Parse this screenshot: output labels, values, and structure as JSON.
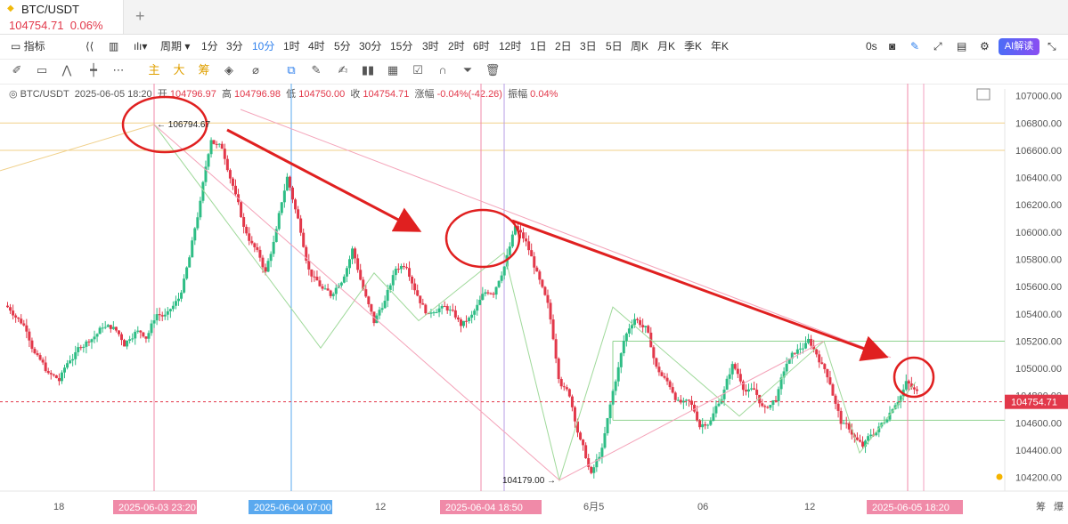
{
  "tab": {
    "symbol": "BTC/USDT",
    "price": "104754.71",
    "change": "0.06%"
  },
  "toolbar": {
    "indicators": "指标",
    "period": "周期",
    "intervals": [
      "1分",
      "3分",
      "10分",
      "1时",
      "4时",
      "5分",
      "30分",
      "15分",
      "3时",
      "2时",
      "6时",
      "12时",
      "1日",
      "2日",
      "3日",
      "5日",
      "周K",
      "月K",
      "季K",
      "年K"
    ],
    "active_interval": "10分",
    "timer": "0s",
    "ai": "AI解读"
  },
  "drawbar": {
    "labels": [
      "主",
      "大",
      "筹"
    ]
  },
  "info": {
    "symbol": "BTC/USDT",
    "datetime": "2025-06-05 18:20",
    "open_label": "开",
    "open": "104796.97",
    "high_label": "高",
    "high": "104796.98",
    "low_label": "低",
    "low": "104750.00",
    "close_label": "收",
    "close": "104754.71",
    "chg_label": "涨幅",
    "chg": "-0.04%(-42.26)",
    "amp_label": "振幅",
    "amp": "0.04%"
  },
  "chart_data": {
    "type": "candlestick",
    "ylim": [
      104100,
      107050
    ],
    "y_ticks": [
      104200,
      104400,
      104600,
      104800,
      105000,
      105200,
      105400,
      105600,
      105800,
      106000,
      106200,
      106400,
      106600,
      106800,
      107000
    ],
    "x_ticks": [
      "18",
      "12",
      "6月5",
      "06",
      "12",
      "筹",
      "爆"
    ],
    "markers": {
      "high": "106794.67",
      "low": "104179.00",
      "current": "104754.71"
    },
    "crosshair_labels": [
      "2025-06-03 23:20",
      "2025-06-04 07:00",
      "2025-06-04 18:50",
      "2025-06-05 18:20"
    ],
    "candles_series_close": [
      105420,
      105300,
      105100,
      104950,
      104900,
      105050,
      105150,
      105250,
      105300,
      105280,
      105200,
      105300,
      105250,
      105400,
      105380,
      105500,
      105800,
      106200,
      106700,
      106600,
      106400,
      106000,
      105900,
      105700,
      106000,
      106400,
      106100,
      105800,
      105600,
      105500,
      105700,
      105900,
      105600,
      105300,
      105500,
      105700,
      105800,
      105600,
      105400,
      105500,
      105400,
      105300,
      105350,
      105500,
      105600,
      105800,
      106000,
      105900,
      105700,
      105400,
      105000,
      104800,
      104500,
      104200,
      104400,
      104800,
      105200,
      105400,
      105300,
      105000,
      104900,
      104800,
      104700,
      104600,
      104650,
      104800,
      105000,
      104900,
      104800,
      104700,
      104800,
      105000,
      105100,
      105200,
      105100,
      104900,
      104600,
      104500,
      104400,
      104500,
      104600,
      104800,
      104900,
      104800
    ]
  }
}
